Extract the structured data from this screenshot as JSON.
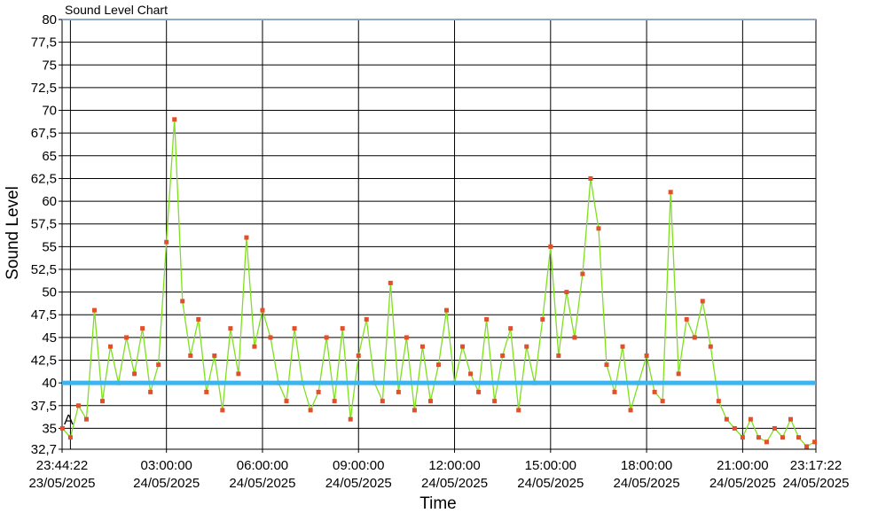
{
  "chart_data": {
    "type": "line",
    "title": "Sound Level Chart",
    "x_label": "Time",
    "y_label": "Sound Level",
    "annotation": "A",
    "x": [
      -0.25,
      0,
      0.25,
      0.5,
      0.75,
      1,
      1.25,
      1.5,
      1.75,
      2,
      2.25,
      2.5,
      2.75,
      3,
      3.25,
      3.5,
      3.75,
      4,
      4.25,
      4.5,
      4.75,
      5,
      5.25,
      5.5,
      5.75,
      6,
      6.25,
      6.5,
      6.75,
      7,
      7.25,
      7.5,
      7.75,
      8,
      8.25,
      8.5,
      8.75,
      9,
      9.25,
      9.5,
      9.75,
      10,
      10.25,
      10.5,
      10.75,
      11,
      11.25,
      11.5,
      11.75,
      12,
      12.25,
      12.5,
      12.75,
      13,
      13.25,
      13.5,
      13.75,
      14,
      14.25,
      14.5,
      14.75,
      15,
      15.25,
      15.5,
      15.75,
      16,
      16.25,
      16.5,
      16.75,
      17,
      17.25,
      17.5,
      17.75,
      18,
      18.25,
      18.5,
      18.75,
      19,
      19.25,
      19.5,
      19.75,
      20,
      20.25,
      20.5,
      20.75,
      21,
      21.25,
      21.5,
      21.75,
      22,
      22.25,
      22.5,
      22.75,
      23,
      23.25
    ],
    "series": [
      {
        "name": "Sound Level",
        "color": "#7fe01e",
        "marker_color": "#e0502a",
        "values": [
          35,
          34,
          37.5,
          36,
          48,
          38,
          44,
          40,
          45,
          41,
          46,
          39,
          42,
          55.5,
          69,
          49,
          43,
          47,
          39,
          43,
          37,
          46,
          41,
          56,
          44,
          48,
          45,
          40,
          38,
          46,
          40,
          37,
          39,
          45,
          38,
          46,
          36,
          43,
          47,
          40,
          38,
          51,
          39,
          45,
          37,
          44,
          38,
          42,
          48,
          40,
          44,
          41,
          39,
          47,
          38,
          43,
          46,
          37,
          44,
          40,
          47,
          55,
          43,
          50,
          45,
          52,
          62.5,
          57,
          42,
          39,
          44,
          37,
          40,
          43,
          39,
          38,
          61,
          41,
          47,
          45,
          49,
          44,
          38,
          36,
          35,
          34,
          36,
          34,
          33.5,
          35,
          34,
          36,
          34,
          33,
          33.5
        ]
      }
    ],
    "threshold": 40,
    "threshold_color": "#3cb4ee",
    "xlim": [
      -0.2606,
      23.2894
    ],
    "xticks": [
      {
        "value": -0.2606,
        "label": "23:44:22 23/05/2025"
      },
      {
        "value": 3,
        "label": "03:00:00 24/05/2025"
      },
      {
        "value": 6,
        "label": "06:00:00 24/05/2025"
      },
      {
        "value": 9,
        "label": "09:00:00 24/05/2025"
      },
      {
        "value": 12,
        "label": "12:00:00 24/05/2025"
      },
      {
        "value": 15,
        "label": "15:00:00 24/05/2025"
      },
      {
        "value": 18,
        "label": "18:00:00 24/05/2025"
      },
      {
        "value": 21,
        "label": "21:00:00 24/05/2025"
      },
      {
        "value": 23.2894,
        "label": "23:17:22 24/05/2025"
      }
    ],
    "xgrid": [
      0,
      3,
      6,
      9,
      12,
      15,
      18,
      21
    ],
    "ylim": [
      32.7,
      80
    ],
    "yticks": [
      {
        "value": 32.7,
        "label": "32,7"
      },
      35,
      {
        "value": 37.5,
        "label": "37,5"
      },
      40,
      {
        "value": 42.5,
        "label": "42,5"
      },
      45,
      {
        "value": 47.5,
        "label": "47,5"
      },
      50,
      {
        "value": 52.5,
        "label": "52,5"
      },
      55,
      {
        "value": 57.5,
        "label": "57,5"
      },
      60,
      {
        "value": 62.5,
        "label": "62,5"
      },
      65,
      {
        "value": 67.5,
        "label": "67,5"
      },
      70,
      {
        "value": 72.5,
        "label": "72,5"
      },
      75,
      {
        "value": 77.5,
        "label": "77,5"
      },
      80
    ],
    "grid": true
  }
}
